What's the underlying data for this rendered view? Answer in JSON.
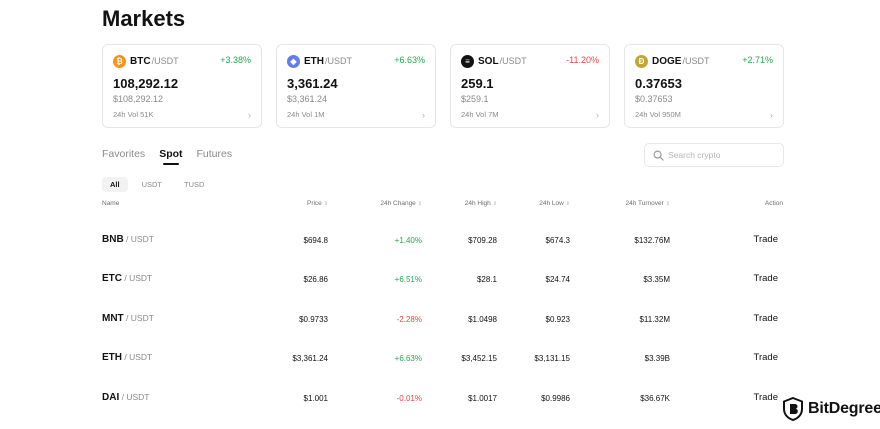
{
  "page": {
    "title": "Markets"
  },
  "colors": {
    "up": "#25a750",
    "down": "#e84545",
    "btc": "#f7931a",
    "eth": "#627eea",
    "sol": "#121212",
    "doge": "#c2a633"
  },
  "cards": [
    {
      "symbol": "BTC",
      "quote": "/USDT",
      "change": "+3.38%",
      "direction": "up",
      "price": "108,292.12",
      "fiat": "$108,292.12",
      "volume": "24h Vol 51K",
      "icon": "bitcoin-icon",
      "glyph": "₿"
    },
    {
      "symbol": "ETH",
      "quote": "/USDT",
      "change": "+6.63%",
      "direction": "up",
      "price": "3,361.24",
      "fiat": "$3,361.24",
      "volume": "24h Vol 1M",
      "icon": "ethereum-icon",
      "glyph": "◆"
    },
    {
      "symbol": "SOL",
      "quote": "/USDT",
      "change": "-11.20%",
      "direction": "down",
      "price": "259.1",
      "fiat": "$259.1",
      "volume": "24h Vol 7M",
      "icon": "solana-icon",
      "glyph": "≡"
    },
    {
      "symbol": "DOGE",
      "quote": "/USDT",
      "change": "+2.71%",
      "direction": "up",
      "price": "0.37653",
      "fiat": "$0.37653",
      "volume": "24h Vol 950M",
      "icon": "dogecoin-icon",
      "glyph": "Ð"
    }
  ],
  "tabs": [
    {
      "label": "Favorites",
      "active": false
    },
    {
      "label": "Spot",
      "active": true
    },
    {
      "label": "Futures",
      "active": false
    }
  ],
  "search": {
    "placeholder": "Search crypto",
    "value": ""
  },
  "chips": [
    {
      "label": "All",
      "active": true
    },
    {
      "label": "USDT",
      "active": false
    },
    {
      "label": "TUSD",
      "active": false
    }
  ],
  "table": {
    "headers": {
      "name": "Name",
      "price": "Price",
      "change": "24h Change",
      "high": "24h High",
      "low": "24h Low",
      "turnover": "24h Turnover",
      "action": "Action"
    },
    "rows": [
      {
        "base": "BNB",
        "quote": " / USDT",
        "price": "$694.8",
        "change": "+1.40%",
        "direction": "up",
        "high": "$709.28",
        "low": "$674.3",
        "turnover": "$132.76M",
        "action": "Trade"
      },
      {
        "base": "ETC",
        "quote": " / USDT",
        "price": "$26.86",
        "change": "+6.51%",
        "direction": "up",
        "high": "$28.1",
        "low": "$24.74",
        "turnover": "$3.35M",
        "action": "Trade"
      },
      {
        "base": "MNT",
        "quote": " / USDT",
        "price": "$0.9733",
        "change": "-2.28%",
        "direction": "down",
        "high": "$1.0498",
        "low": "$0.923",
        "turnover": "$11.32M",
        "action": "Trade"
      },
      {
        "base": "ETH",
        "quote": " / USDT",
        "price": "$3,361.24",
        "change": "+6.63%",
        "direction": "up",
        "high": "$3,452.15",
        "low": "$3,131.15",
        "turnover": "$3.39B",
        "action": "Trade"
      },
      {
        "base": "DAI",
        "quote": " / USDT",
        "price": "$1.001",
        "change": "-0.01%",
        "direction": "down",
        "high": "$1.0017",
        "low": "$0.9986",
        "turnover": "$36.67K",
        "action": "Trade"
      }
    ]
  },
  "watermark": {
    "text": "BitDegree"
  }
}
